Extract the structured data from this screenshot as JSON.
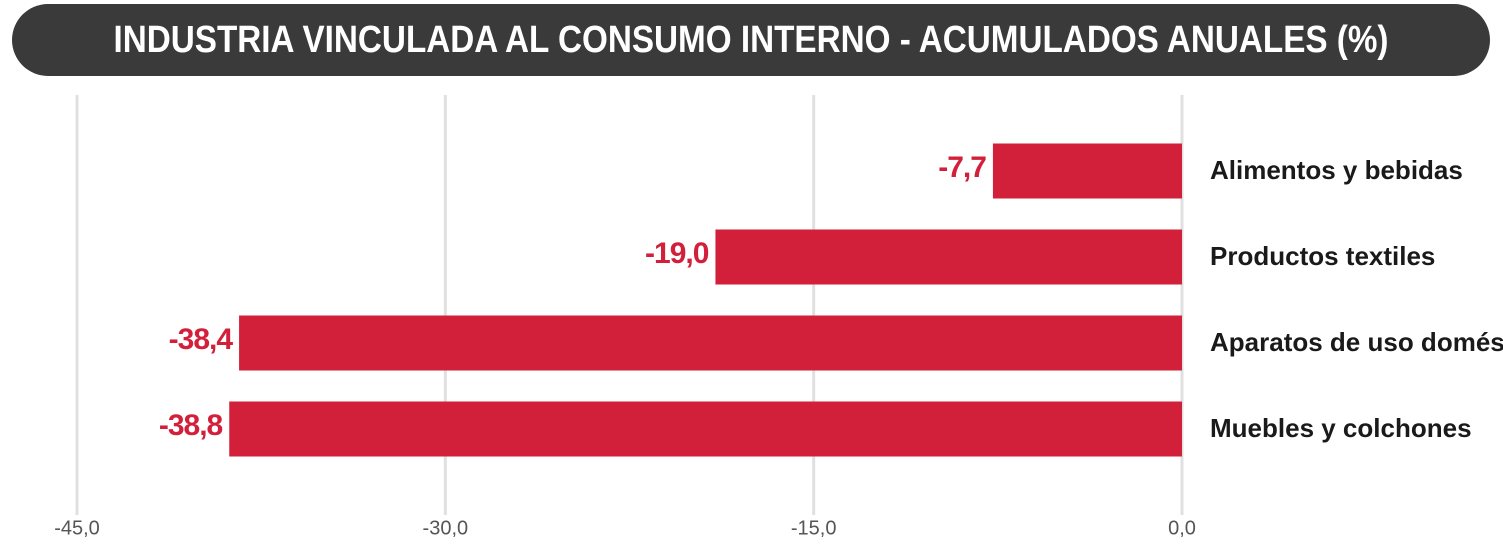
{
  "chart_data": {
    "type": "bar",
    "orientation": "horizontal",
    "title": "INDUSTRIA VINCULADA AL CONSUMO INTERNO - ACUMULADOS ANUALES (%)",
    "categories": [
      "Alimentos y bebidas",
      "Productos textiles",
      "Aparatos de uso doméstico",
      "Muebles y colchones"
    ],
    "values": [
      -7.7,
      -19.0,
      -38.4,
      -38.8
    ],
    "value_labels": [
      "-7,7",
      "-19,0",
      "-38,4",
      "-38,8"
    ],
    "color": "#d21f3a",
    "xlim": [
      -45,
      0
    ],
    "xticks": [
      {
        "value": -45,
        "label": "-45,0"
      },
      {
        "value": -30,
        "label": "-30,0"
      },
      {
        "value": -15,
        "label": "-15,0"
      },
      {
        "value": 0,
        "label": "0,0"
      }
    ],
    "grid": true
  }
}
